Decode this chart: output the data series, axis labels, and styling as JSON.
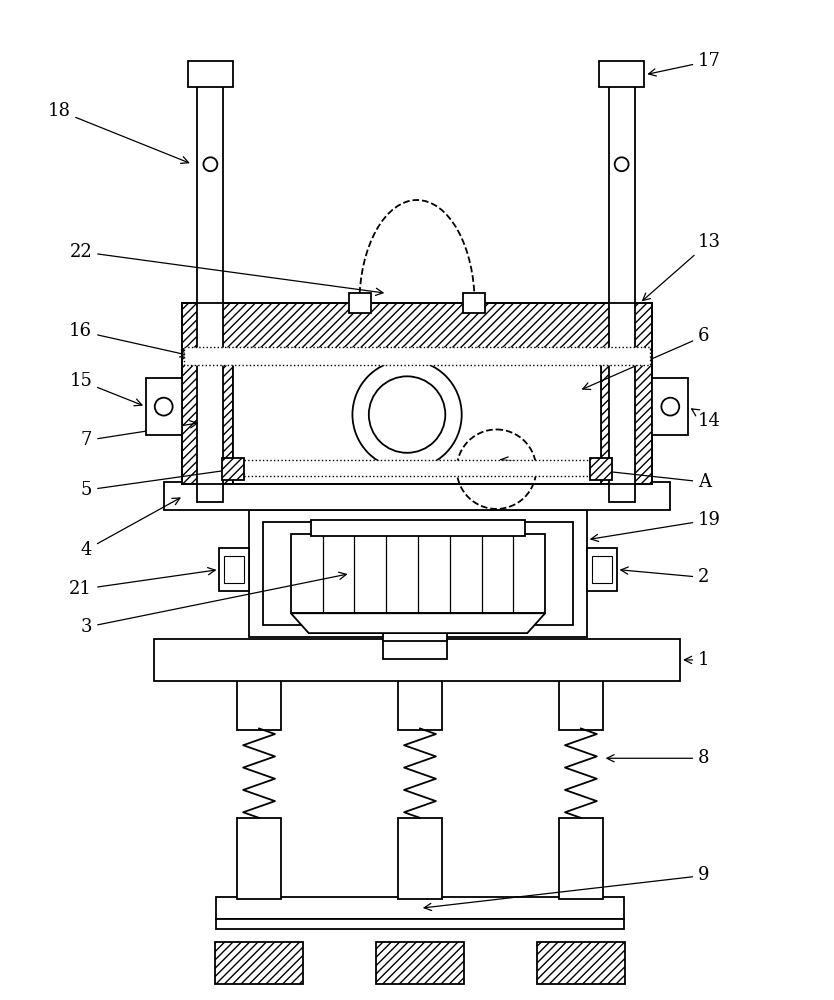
{
  "bg_color": "#ffffff",
  "line_color": "#000000",
  "fig_width": 8.34,
  "fig_height": 10.0,
  "dpi": 100
}
